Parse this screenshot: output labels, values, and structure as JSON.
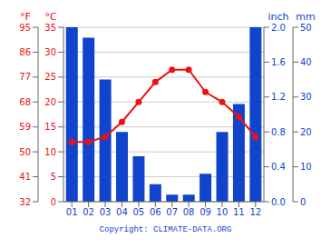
{
  "chart_data": {
    "type": "bar",
    "categories": [
      "01",
      "02",
      "03",
      "04",
      "05",
      "06",
      "07",
      "08",
      "09",
      "10",
      "11",
      "12"
    ],
    "series": [
      {
        "type": "bar",
        "color": "#1144cc",
        "axis": "y2",
        "values": [
          50,
          47,
          35,
          20,
          13,
          5,
          2,
          2,
          8,
          20,
          28,
          50
        ]
      },
      {
        "type": "line",
        "color": "#ee1111",
        "marker": "circle",
        "values": [
          12,
          12,
          13,
          16,
          20,
          24,
          26.5,
          26.5,
          22,
          20,
          17,
          13
        ]
      }
    ],
    "ylabel": "°C",
    "ylim": [
      0,
      35
    ],
    "yticks": [
      0,
      5,
      10,
      15,
      20,
      25,
      30,
      35
    ],
    "y2label": "mm",
    "y2lim": [
      0,
      50
    ],
    "y2ticks": [
      0,
      10,
      20,
      30,
      40,
      50
    ],
    "y3label": "°F",
    "y3lim": [
      0,
      35
    ],
    "y3ticks": [
      {
        "value": 0,
        "label": "32"
      },
      {
        "value": 5,
        "label": "41"
      },
      {
        "value": 10,
        "label": "50"
      },
      {
        "value": 15,
        "label": "59"
      },
      {
        "value": 20,
        "label": "68"
      },
      {
        "value": 25,
        "label": "77"
      },
      {
        "value": 30,
        "label": "86"
      },
      {
        "value": 35,
        "label": "95"
      }
    ],
    "y4label": "inch",
    "y4lim": [
      0,
      50
    ],
    "y4ticks": [
      {
        "value": 0,
        "label": "0.0"
      },
      {
        "value": 10,
        "label": "0.4"
      },
      {
        "value": 20,
        "label": "0.8"
      },
      {
        "value": 30,
        "label": "1.2"
      },
      {
        "value": 40,
        "label": "1.6"
      },
      {
        "value": 50,
        "label": "2.0"
      }
    ],
    "grid": true,
    "annotations": [
      "Copyright: CLIMATE-DATA.ORG"
    ]
  }
}
